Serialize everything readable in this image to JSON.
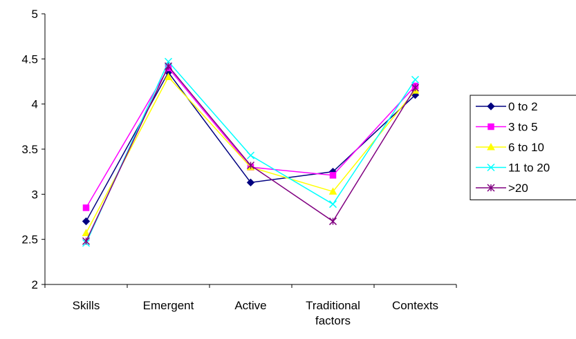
{
  "chart_data": {
    "type": "line",
    "categories": [
      "Skills",
      "Emergent",
      "Active",
      "Traditional factors",
      "Contexts"
    ],
    "category_lines": [
      [
        "Skills"
      ],
      [
        "Emergent"
      ],
      [
        "Active"
      ],
      [
        "Traditional",
        "factors"
      ],
      [
        "Contexts"
      ]
    ],
    "ylim": [
      2,
      5
    ],
    "yticks": [
      "2",
      "2.5",
      "3",
      "3.5",
      "4",
      "4.5",
      "5"
    ],
    "grid": false,
    "legend_position": "right",
    "series": [
      {
        "name": "0 to 2",
        "color": "#000080",
        "marker": "diamond",
        "values": [
          2.7,
          4.35,
          3.13,
          3.25,
          4.1
        ]
      },
      {
        "name": "3 to 5",
        "color": "#FF00FF",
        "marker": "square",
        "values": [
          2.85,
          4.4,
          3.3,
          3.21,
          4.2
        ]
      },
      {
        "name": "6 to 10",
        "color": "#FFFF00",
        "marker": "triangle",
        "values": [
          2.57,
          4.3,
          3.3,
          3.03,
          4.15
        ]
      },
      {
        "name": "11 to 20",
        "color": "#00FFFF",
        "marker": "x",
        "values": [
          2.46,
          4.47,
          3.43,
          2.89,
          4.27
        ]
      },
      {
        "name": ">20",
        "color": "#800080",
        "marker": "asterisk",
        "values": [
          2.48,
          4.42,
          3.32,
          2.7,
          4.18
        ]
      }
    ]
  }
}
